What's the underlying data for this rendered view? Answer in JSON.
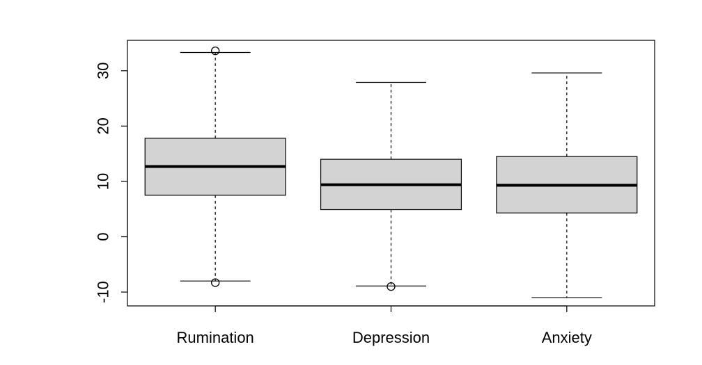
{
  "chart_data": {
    "type": "boxplot",
    "title": "",
    "xlabel": "",
    "ylabel": "",
    "ylim": [
      -12.5,
      35.5
    ],
    "yticks": [
      -10,
      0,
      10,
      20,
      30
    ],
    "ytick_labels": [
      "-10",
      "0",
      "10",
      "20",
      "30"
    ],
    "grid": false,
    "legend": "none",
    "categories": [
      "Rumination",
      "Depression",
      "Anxiety"
    ],
    "boxes": [
      {
        "category": "Rumination",
        "whisker_low": -8.0,
        "q1": 7.5,
        "median": 12.7,
        "q3": 17.8,
        "whisker_high": 33.3,
        "outliers": [
          33.6,
          -8.3
        ]
      },
      {
        "category": "Depression",
        "whisker_low": -8.9,
        "q1": 4.9,
        "median": 9.4,
        "q3": 14.0,
        "whisker_high": 27.9,
        "outliers": [
          -9.0
        ]
      },
      {
        "category": "Anxiety",
        "whisker_low": -11.0,
        "q1": 4.3,
        "median": 9.3,
        "q3": 14.5,
        "whisker_high": 29.6,
        "outliers": []
      }
    ],
    "colors": {
      "box_fill": "#d3d3d3",
      "stroke": "#000000"
    }
  }
}
